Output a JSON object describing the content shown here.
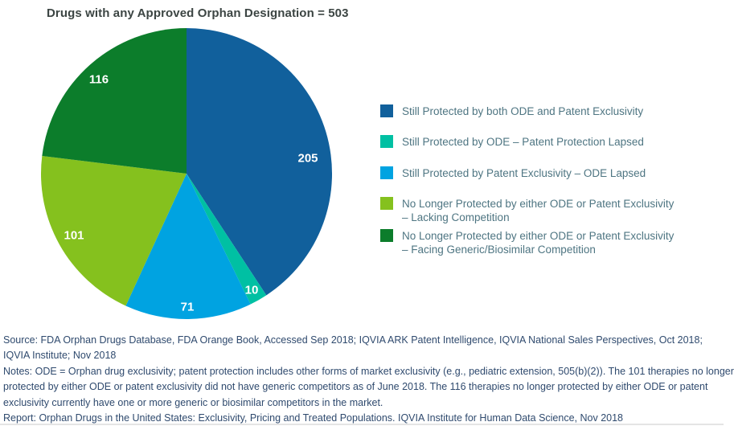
{
  "chart_data": {
    "type": "pie",
    "title": "Drugs with any Approved Orphan Designation = 503",
    "total": 503,
    "start_angle_deg": 0,
    "direction": "clockwise",
    "legend_position": "right",
    "slices": [
      {
        "label": "Still Protected by both ODE and Patent Exclusivity",
        "value": 205,
        "color": "#11609c"
      },
      {
        "label": "Still Protected by ODE – Patent Protection Lapsed",
        "value": 10,
        "color": "#00c0a3"
      },
      {
        "label": "Still Protected by Patent Exclusivity – ODE Lapsed",
        "value": 71,
        "color": "#00a3e1"
      },
      {
        "label": "No Longer Protected by either ODE or Patent Exclusivity – Lacking Competition",
        "value": 101,
        "color": "#85c11e"
      },
      {
        "label": "No Longer Protected by either ODE or Patent Exclusivity – Facing Generic/Biosimilar Competition",
        "value": 116,
        "color": "#0c7d2b"
      }
    ]
  },
  "legend": {
    "items": [
      {
        "color": "#11609c",
        "lines": [
          "Still Protected by both ODE and Patent Exclusivity"
        ]
      },
      {
        "color": "#00c0a3",
        "lines": [
          "Still Protected by ODE – Patent Protection Lapsed"
        ]
      },
      {
        "color": "#00a3e1",
        "lines": [
          "Still Protected by Patent Exclusivity – ODE Lapsed"
        ]
      },
      {
        "color": "#85c11e",
        "lines": [
          "No Longer Protected by either ODE or Patent Exclusivity",
          "– Lacking Competition"
        ]
      },
      {
        "color": "#0c7d2b",
        "lines": [
          "No Longer Protected by either ODE or Patent Exclusivity",
          "– Facing Generic/Biosimilar Competition"
        ]
      }
    ]
  },
  "footer": {
    "lines": [
      "Source: FDA Orphan Drugs Database, FDA Orange Book, Accessed Sep 2018; IQVIA ARK Patent Intelligence, IQVIA National Sales Perspectives, Oct 2018;",
      "IQVIA Institute; Nov 2018",
      "Notes: ODE = Orphan drug exclusivity; patent protection includes other forms of market exclusivity (e.g., pediatric extension, 505(b)(2)). The 101 therapies no longer",
      "protected by either ODE or patent exclusivity did not have generic competitors as of June 2018. The 116 therapies no longer protected by either ODE or patent",
      "exclusivity currently have one or more generic or biosimilar competitors in the market.",
      "Report: Orphan Drugs in the United States: Exclusivity, Pricing and Treated Populations. IQVIA Institute for Human Data Science, Nov 2018"
    ]
  }
}
